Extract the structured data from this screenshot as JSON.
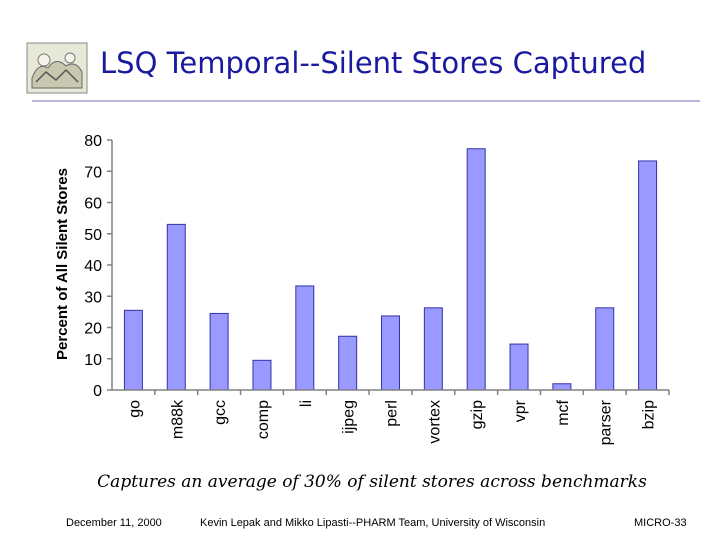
{
  "slide": {
    "title": "LSQ Temporal--Silent Stores Captured",
    "caption": "Captures an average of  30% of silent stores across benchmarks",
    "footer_date": "December 11, 2000",
    "footer_authors": "Kevin Lepak and Mikko Lipasti--PHARM Team, University of Wisconsin",
    "footer_page": "MICRO-33"
  },
  "colors": {
    "title": "#1a1aa0",
    "bar_fill": "#9999ff",
    "bar_stroke": "#3333aa",
    "axis": "#808080"
  },
  "chart_data": {
    "type": "bar",
    "title": "",
    "xlabel": "",
    "ylabel": "Percent of All Silent Stores",
    "ylim": [
      0,
      80
    ],
    "yticks": [
      0,
      10,
      20,
      30,
      40,
      50,
      60,
      70,
      80
    ],
    "grid": false,
    "categories": [
      "go",
      "m88k",
      "gcc",
      "comp",
      "li",
      "ijpeg",
      "perl",
      "vortex",
      "gzip",
      "vpr",
      "mcf",
      "parser",
      "bzip"
    ],
    "values": [
      25.5,
      53,
      24.5,
      9.5,
      33.3,
      17.2,
      23.7,
      26.3,
      77.2,
      14.7,
      2,
      26.3,
      73.3
    ]
  }
}
